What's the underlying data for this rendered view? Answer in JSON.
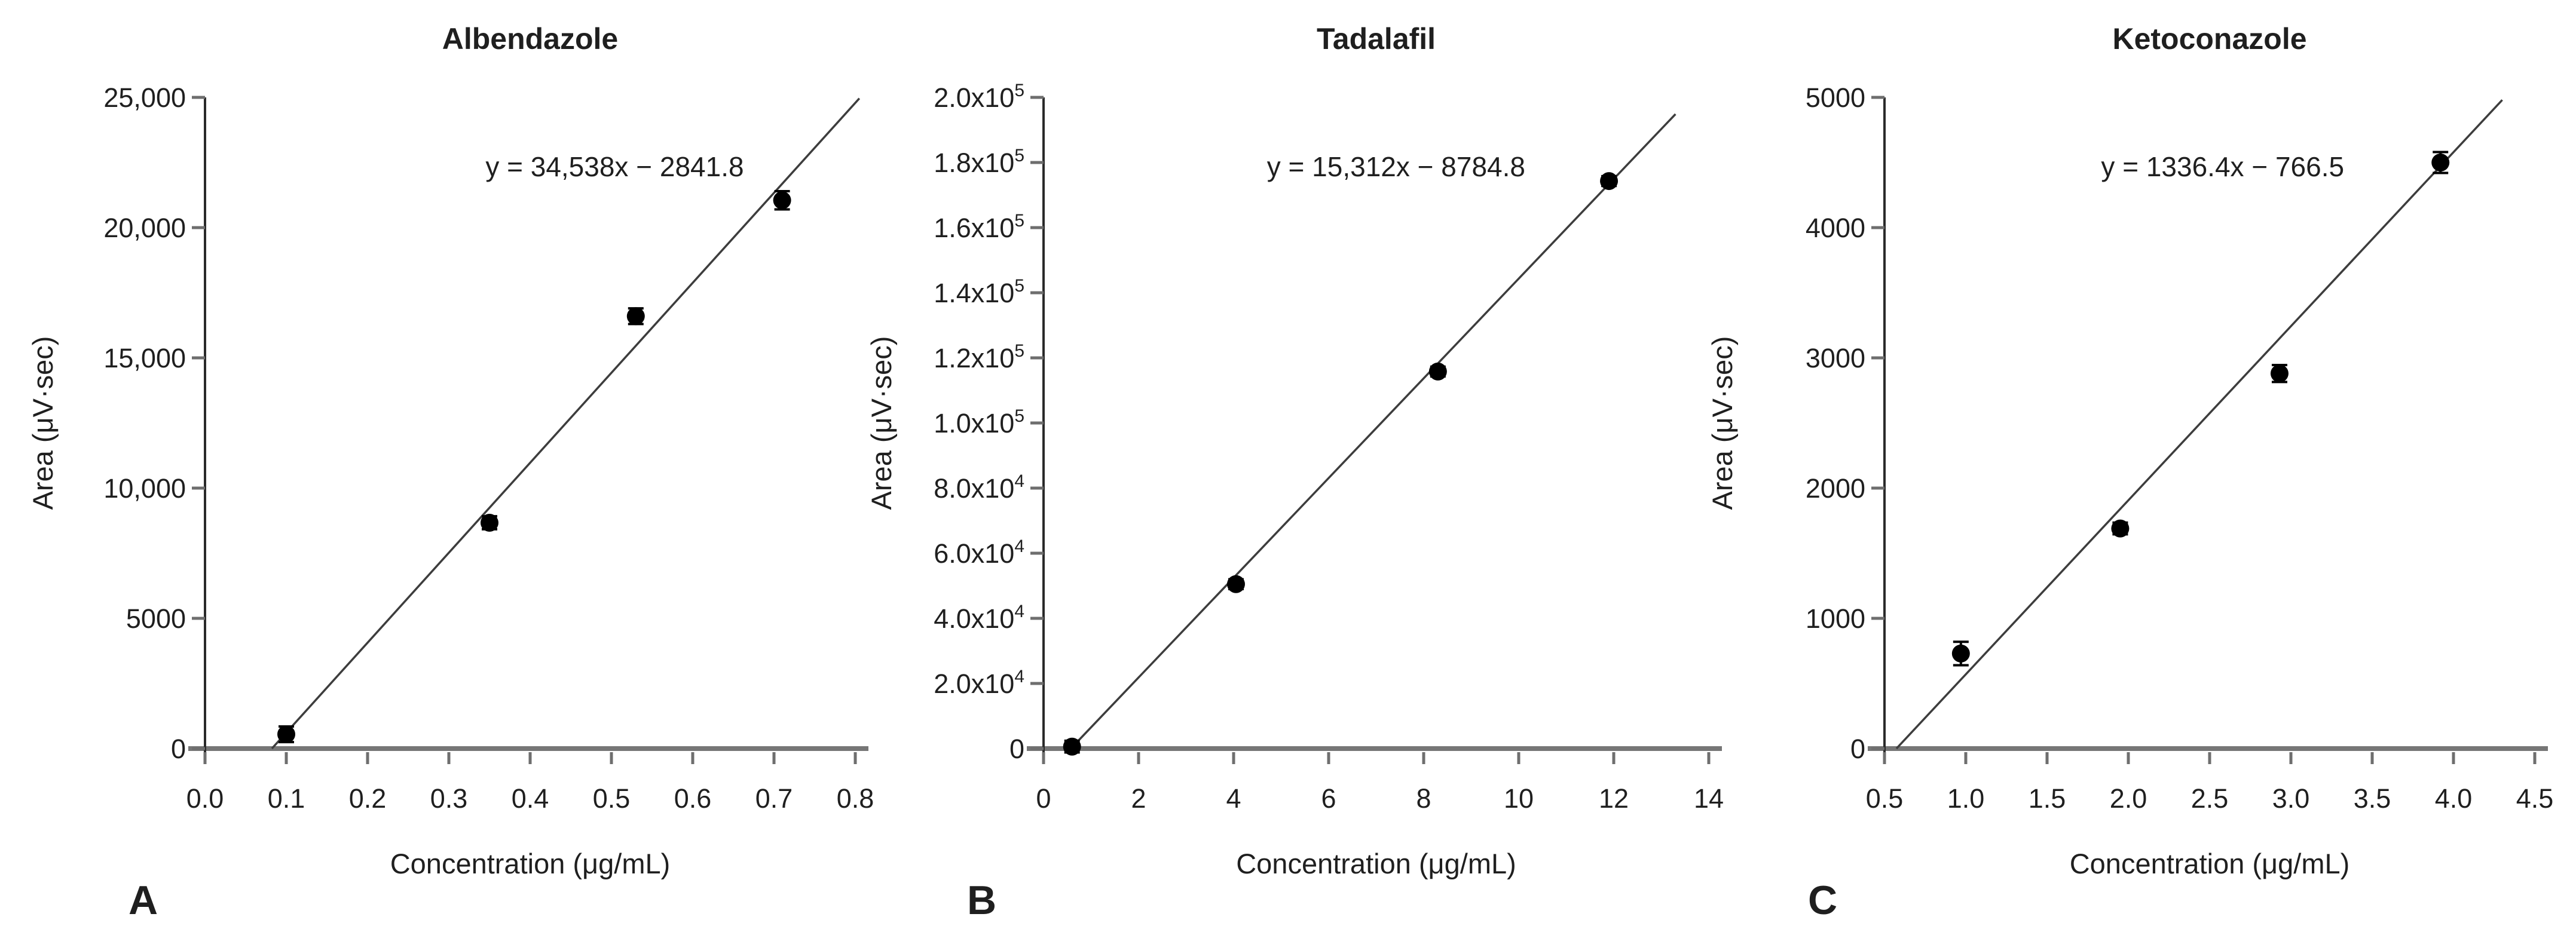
{
  "figure": {
    "background": "#ffffff",
    "shared_xlabel": "Concentration (μg/mL)",
    "shared_ylabel": "Area (μV·sec)"
  },
  "colors": {
    "marker": "#000000",
    "trend_line": "#3d3d3d",
    "x_axis": "#767676",
    "y_axis": "#2a2a2a",
    "tick": "#6e6e6e",
    "text": "#1f1f1f"
  },
  "chart_data": [
    {
      "type": "scatter",
      "panel_label": "A",
      "title": "Albendazole",
      "equation": "y = 34,538x − 2841.8",
      "xlabel": "Concentration (μg/mL)",
      "ylabel": "Area (μV·sec)",
      "xlim": [
        0.0,
        0.8
      ],
      "ylim": [
        0,
        25000
      ],
      "grid": false,
      "legend": "none",
      "x_ticks": [
        {
          "v": 0.0,
          "label": "0.0"
        },
        {
          "v": 0.1,
          "label": "0.1"
        },
        {
          "v": 0.2,
          "label": "0.2"
        },
        {
          "v": 0.3,
          "label": "0.3"
        },
        {
          "v": 0.4,
          "label": "0.4"
        },
        {
          "v": 0.5,
          "label": "0.5"
        },
        {
          "v": 0.6,
          "label": "0.6"
        },
        {
          "v": 0.7,
          "label": "0.7"
        },
        {
          "v": 0.8,
          "label": "0.8"
        }
      ],
      "y_ticks": [
        {
          "v": 0,
          "label": "0"
        },
        {
          "v": 5000,
          "label": "5000"
        },
        {
          "v": 10000,
          "label": "10,000"
        },
        {
          "v": 15000,
          "label": "15,000"
        },
        {
          "v": 20000,
          "label": "20,000"
        },
        {
          "v": 25000,
          "label": "25,000"
        }
      ],
      "points": [
        {
          "x": 0.1,
          "y": 550,
          "err": 300
        },
        {
          "x": 0.35,
          "y": 8670,
          "err": 250
        },
        {
          "x": 0.53,
          "y": 16600,
          "err": 300
        },
        {
          "x": 0.71,
          "y": 21050,
          "err": 350
        }
      ],
      "fit": {
        "slope": 34538,
        "intercept": -2841.8
      },
      "line": {
        "x_start": 0.0823,
        "x_end": 0.805
      }
    },
    {
      "type": "scatter",
      "panel_label": "B",
      "title": "Tadalafil",
      "equation": "y = 15,312x − 8784.8",
      "xlabel": "Concentration (μg/mL)",
      "ylabel": "Area (μV·sec)",
      "xlim": [
        0,
        14
      ],
      "ylim": [
        0,
        200000
      ],
      "grid": false,
      "legend": "none",
      "x_ticks": [
        {
          "v": 0,
          "label": "0"
        },
        {
          "v": 2,
          "label": "2"
        },
        {
          "v": 4,
          "label": "4"
        },
        {
          "v": 6,
          "label": "6"
        },
        {
          "v": 8,
          "label": "8"
        },
        {
          "v": 10,
          "label": "10"
        },
        {
          "v": 12,
          "label": "12"
        },
        {
          "v": 14,
          "label": "14"
        }
      ],
      "y_ticks": [
        {
          "v": 0,
          "label": "0"
        },
        {
          "v": 20000,
          "label": "2.0x10^4"
        },
        {
          "v": 40000,
          "label": "4.0x10^4"
        },
        {
          "v": 60000,
          "label": "6.0x10^4"
        },
        {
          "v": 80000,
          "label": "8.0x10^4"
        },
        {
          "v": 100000,
          "label": "1.0x10^5"
        },
        {
          "v": 120000,
          "label": "1.2x10^5"
        },
        {
          "v": 140000,
          "label": "1.4x10^5"
        },
        {
          "v": 160000,
          "label": "1.6x10^5"
        },
        {
          "v": 180000,
          "label": "1.8x10^5"
        },
        {
          "v": 200000,
          "label": "2.0x10^5"
        }
      ],
      "points": [
        {
          "x": 0.6,
          "y": 600,
          "err": 1800
        },
        {
          "x": 4.05,
          "y": 50500,
          "err": 1500
        },
        {
          "x": 8.3,
          "y": 115800,
          "err": 1500
        },
        {
          "x": 11.9,
          "y": 174300,
          "err": 1500
        }
      ],
      "fit": {
        "slope": 15312,
        "intercept": -8784.8
      },
      "line": {
        "x_start": 0.5737,
        "x_end": 13.3
      }
    },
    {
      "type": "scatter",
      "panel_label": "C",
      "title": "Ketoconazole",
      "equation": "y = 1336.4x − 766.5",
      "xlabel": "Concentration (μg/mL)",
      "ylabel": "Area (μV·sec)",
      "xlim": [
        0.5,
        4.5
      ],
      "ylim": [
        0,
        5000
      ],
      "grid": false,
      "legend": "none",
      "x_ticks": [
        {
          "v": 0.5,
          "label": "0.5"
        },
        {
          "v": 1.0,
          "label": "1.0"
        },
        {
          "v": 1.5,
          "label": "1.5"
        },
        {
          "v": 2.0,
          "label": "2.0"
        },
        {
          "v": 2.5,
          "label": "2.5"
        },
        {
          "v": 3.0,
          "label": "3.0"
        },
        {
          "v": 3.5,
          "label": "3.5"
        },
        {
          "v": 4.0,
          "label": "4.0"
        },
        {
          "v": 4.5,
          "label": "4.5"
        }
      ],
      "y_ticks": [
        {
          "v": 0,
          "label": "0"
        },
        {
          "v": 1000,
          "label": "1000"
        },
        {
          "v": 2000,
          "label": "2000"
        },
        {
          "v": 3000,
          "label": "3000"
        },
        {
          "v": 4000,
          "label": "4000"
        },
        {
          "v": 5000,
          "label": "5000"
        }
      ],
      "points": [
        {
          "x": 0.97,
          "y": 730,
          "err": 90
        },
        {
          "x": 1.95,
          "y": 1690,
          "err": 45
        },
        {
          "x": 2.93,
          "y": 2880,
          "err": 65
        },
        {
          "x": 3.92,
          "y": 4500,
          "err": 80
        }
      ],
      "fit": {
        "slope": 1336.4,
        "intercept": -766.5
      },
      "line": {
        "x_start": 0.5735,
        "x_end": 4.3
      }
    }
  ]
}
